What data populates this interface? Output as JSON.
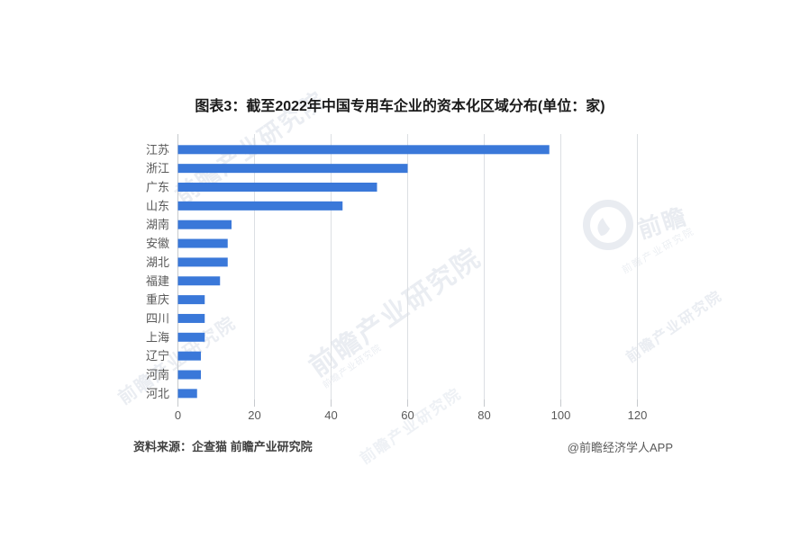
{
  "title": "图表3：截至2022年中国专用车企业的资本化区域分布(单位：家)",
  "footer": {
    "source": "资料来源：企查猫 前瞻产业研究院",
    "credit": "@前瞻经济学人APP"
  },
  "watermark": {
    "text": "前瞻产业研究院",
    "logo_text": "前瞻"
  },
  "colors": {
    "bar": "#3a78d9",
    "grid_line": "#dcdfe3",
    "axis_line": "#c6c9cd",
    "tick_label": "#595959",
    "category_label": "#595959"
  },
  "chart_data": {
    "type": "bar",
    "orientation": "horizontal",
    "title": "图表3：截至2022年中国专用车企业的资本化区域分布(单位：家)",
    "categories": [
      "江苏",
      "浙江",
      "广东",
      "山东",
      "湖南",
      "安徽",
      "湖北",
      "福建",
      "重庆",
      "四川",
      "上海",
      "辽宁",
      "河南",
      "河北"
    ],
    "values": [
      97,
      60,
      52,
      43,
      14,
      13,
      13,
      11,
      7,
      7,
      7,
      6,
      6,
      5
    ],
    "xlabel": "",
    "ylabel": "",
    "unit": "家",
    "xlim": [
      0,
      126
    ],
    "xticks": [
      0,
      20,
      40,
      60,
      80,
      100,
      120
    ],
    "grid": true,
    "legend": false
  }
}
